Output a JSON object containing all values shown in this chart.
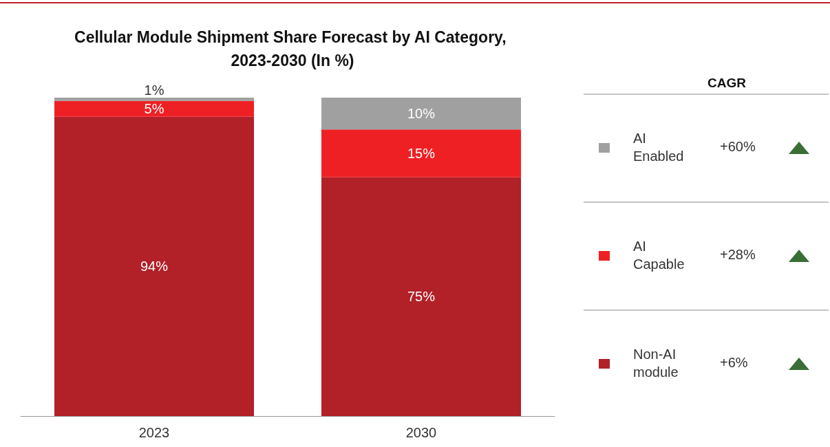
{
  "chart_data": {
    "type": "bar",
    "title": "Cellular Module Shipment Share Forecast by AI Category, 2023-2030 (In %)",
    "categories": [
      "2023",
      "2030"
    ],
    "stacked": true,
    "series": [
      {
        "name": "Non-AI module",
        "color": "#b22028",
        "values": [
          94,
          75
        ],
        "value_labels": [
          "94%",
          "75%"
        ]
      },
      {
        "name": "AI Capable",
        "color": "#ee2024",
        "values": [
          5,
          15
        ],
        "value_labels": [
          "5%",
          "15%"
        ]
      },
      {
        "name": "AI Enabled",
        "color": "#a0a0a0",
        "values": [
          1,
          10
        ],
        "value_labels": [
          "1%",
          "10%"
        ]
      }
    ],
    "legend": "right",
    "annotations": [
      "CAGR",
      "+6%",
      "+28%",
      "+60%"
    ]
  }
}
